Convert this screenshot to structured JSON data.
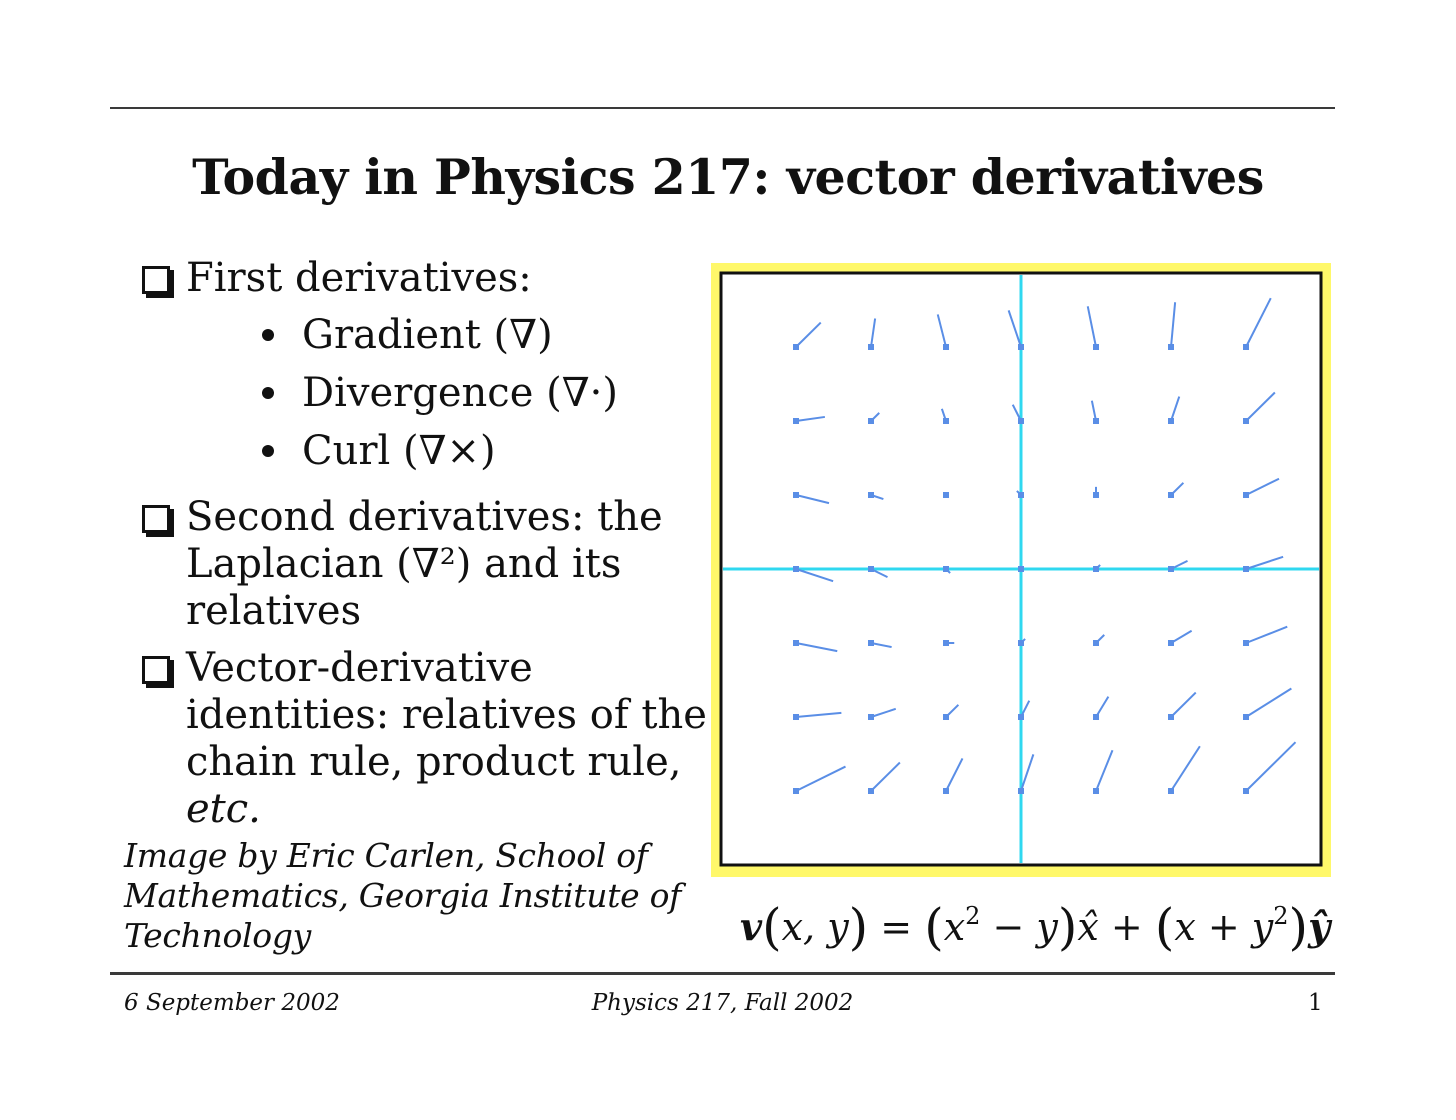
{
  "slide": {
    "title": "Today in Physics 217: vector derivatives",
    "bullets": [
      {
        "text": "First derivatives:",
        "sub": [
          "Gradient (∇)",
          "Divergence (∇·)",
          "Curl (∇×)"
        ]
      },
      {
        "text": "Second derivatives: the Laplacian (∇²) and its relatives"
      },
      {
        "text_main": "Vector-derivative identities: relatives of the chain rule, product rule, ",
        "text_italic": "etc."
      }
    ],
    "credit": "Image by Eric Carlen, School of Mathematics, Georgia Institute of Technology"
  },
  "plot": {
    "frame_color": "#fff86a",
    "axis_color": "#2fd8f0",
    "arrow_color": "#5a8ee6",
    "field": "v(x,y) = (x^2 - y) x-hat + (x + y^2) y-hat",
    "x_range": [
      -4,
      4
    ],
    "y_range": [
      -4,
      4
    ],
    "grid_points": [
      -3,
      -2,
      -1,
      0,
      1,
      2,
      3
    ]
  },
  "formula": {
    "v": "v",
    "args": "x, y",
    "eq": " = ",
    "p1_a": "x",
    "p1_exp": "2",
    "p1_b": " − y",
    "xhat": "x̂",
    "plus": " + ",
    "p2_a": "x + y",
    "p2_exp": "2",
    "yhat": "ŷ"
  },
  "footer": {
    "date": "6 September 2002",
    "course": "Physics 217, Fall 2002",
    "page": "1"
  }
}
